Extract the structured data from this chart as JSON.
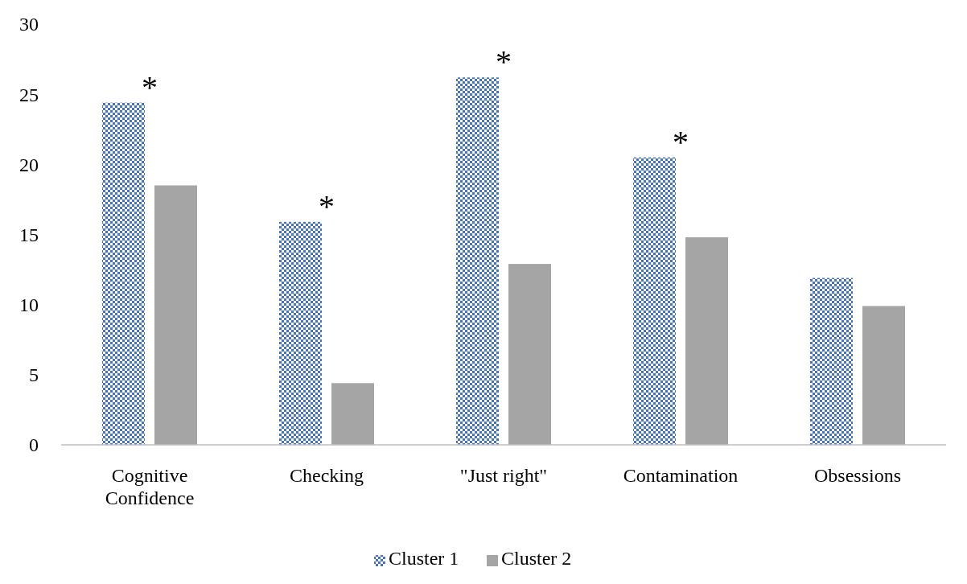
{
  "chart_data": {
    "type": "bar",
    "categories": [
      "Cognitive Confidence",
      "Checking",
      "\"Just right\"",
      "Contamination",
      "Obsessions"
    ],
    "series": [
      {
        "name": "Cluster 1",
        "color": "#4472c4",
        "values": [
          24.4,
          15.9,
          26.2,
          20.5,
          11.9
        ]
      },
      {
        "name": "Cluster 2",
        "color": "#a5a5a5",
        "values": [
          18.5,
          4.4,
          12.9,
          14.8,
          9.9
        ]
      }
    ],
    "ylim": [
      0,
      30
    ],
    "yticks": [
      0,
      5,
      10,
      15,
      20,
      25,
      30
    ],
    "grid": false,
    "legend": "bottom",
    "annotations": [
      "*",
      "*",
      "*",
      "*"
    ]
  }
}
